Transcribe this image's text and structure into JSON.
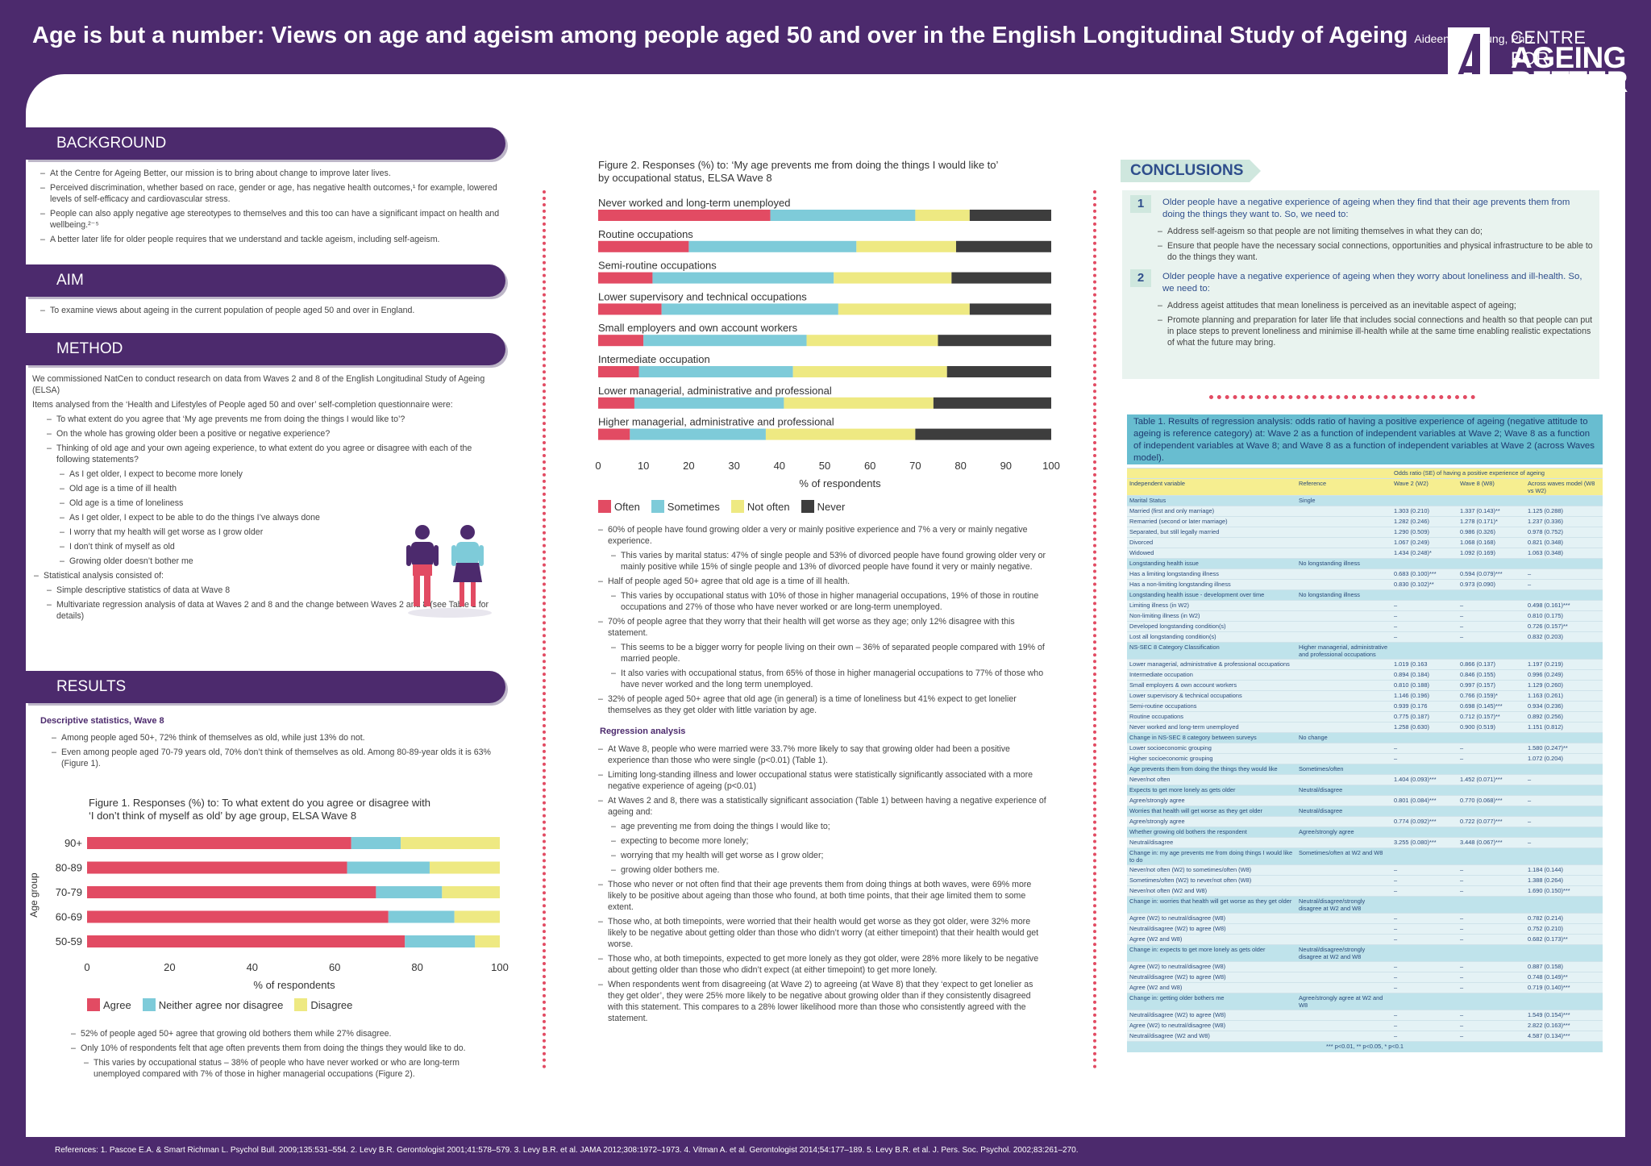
{
  "header": {
    "title": "Age is but a number: Views on age and ageism among people aged 50 and over in the English Longitudinal Study of Ageing",
    "author": "Aideen CM Young, PhD",
    "logo_line1": "CENTRE FOR",
    "logo_line2": "AGEING",
    "logo_line3": "BETTER"
  },
  "colors": {
    "purple": "#4c2a6d",
    "red": "#e24b63",
    "blue": "#7ecbd9",
    "yellow": "#eee982",
    "dark": "#3d3d3d",
    "teal_bg": "#e9f3ef"
  },
  "background": {
    "heading": "BACKGROUND",
    "items": [
      "At the Centre for Ageing Better, our mission is to bring about change to improve later lives.",
      "Perceived discrimination, whether based on race, gender or age, has negative health outcomes,¹ for example, lowered levels of self-efficacy and cardiovascular stress.",
      "People can also apply negative age stereotypes to themselves and this too can have a significant impact on health and wellbeing.²⁻⁵",
      "A better later life for older people requires that we understand and tackle ageism, including self-ageism."
    ]
  },
  "aim": {
    "heading": "AIM",
    "items": [
      "To examine views about ageing in the current population of people aged 50 and over in England."
    ]
  },
  "method": {
    "heading": "METHOD",
    "p1": "We commissioned NatCen to conduct research on data from Waves 2 and 8 of the English Longitudinal Study of Ageing (ELSA)",
    "p2": "Items analysed from the ‘Health and Lifestyles of People aged 50 and over’ self-completion questionnaire were:",
    "q1": "To what extent do you agree that ‘My age prevents me from doing the things I would like to’?",
    "q2": "On the whole has growing older been a positive or negative experience?",
    "q3": "Thinking of old age and your own ageing experience, to what extent do you agree or disagree with each of the following statements?",
    "statements": [
      "As I get older, I expect to become more lonely",
      "Old age is a time of ill health",
      "Old age is a time of loneliness",
      "As I get older, I expect to be able to do the things I’ve always done",
      "I worry that my health will get worse as I grow older",
      "I don’t think of myself as old",
      "Growing older doesn’t bother me"
    ],
    "stat_intro": "Statistical analysis consisted of:",
    "stat_items": [
      "Simple descriptive statistics of data at Wave 8",
      "Multivariate regression analysis of data at Waves 2 and 8 and the change between Waves 2 and 8 (see Table 1 for details)"
    ]
  },
  "results": {
    "heading": "RESULTS",
    "subhead": "Descriptive statistics, Wave 8",
    "items": [
      "Among people aged 50+, 72% think of themselves as old, while just 13% do not.",
      "Even among people aged 70-79 years old, 70% don’t think of themselves as old. Among 80-89-year olds it is 63% (Figure 1)."
    ],
    "after1": "52% of people aged 50+ agree that growing old bothers them while 27% disagree.",
    "after2": "Only 10% of respondents felt that age often prevents them from doing the things they would like to do.",
    "after3": "This varies by occupational status – 38% of people who have never worked or who are long-term unemployed compared with 7% of those in higher managerial occupations (Figure 2)."
  },
  "figure1": {
    "title_line1": "Figure 1. Responses (%) to: To what extent do you agree or disagree with",
    "title_line2": "‘I don’t think of myself as old’ by age group, ELSA Wave 8",
    "ylabel": "Age group",
    "xlabel": "% of respondents",
    "legend": [
      "Agree",
      "Neither agree nor disagree",
      "Disagree"
    ]
  },
  "figure2": {
    "title_line1": "Figure 2. Responses (%) to: ‘My age prevents me from doing the things I would like to’",
    "title_line2": "by occupational status, ELSA Wave 8",
    "xlabel": "% of respondents",
    "legend": [
      "Often",
      "Sometimes",
      "Not often",
      "Never"
    ]
  },
  "chart_data": [
    {
      "type": "bar",
      "orientation": "horizontal-stacked",
      "title": "Figure 1. Responses (%) to: To what extent do you agree or disagree with ‘I don’t think of myself as old’ by age group, ELSA Wave 8",
      "categories": [
        "90+",
        "80-89",
        "70-79",
        "60-69",
        "50-59"
      ],
      "series": [
        {
          "name": "Agree",
          "values": [
            64,
            63,
            70,
            73,
            77
          ]
        },
        {
          "name": "Neither agree nor disagree",
          "values": [
            12,
            20,
            16,
            16,
            17
          ]
        },
        {
          "name": "Disagree",
          "values": [
            24,
            17,
            14,
            11,
            6
          ]
        }
      ],
      "xlim": [
        0,
        100
      ],
      "xticks": [
        0,
        20,
        40,
        60,
        80,
        100
      ],
      "xlabel": "% of respondents",
      "ylabel": "Age group"
    },
    {
      "type": "bar",
      "orientation": "horizontal-stacked",
      "title": "Figure 2. Responses (%) to: ‘My age prevents me from doing the things I would like to’ by occupational status, ELSA Wave 8",
      "categories": [
        "Never worked and long-term unemployed",
        "Routine occupations",
        "Semi-routine occupations",
        "Lower supervisory and technical occupations",
        "Small employers and own account workers",
        "Intermediate occupation",
        "Lower managerial, administrative and professional",
        "Higher managerial, administrative and professional"
      ],
      "series": [
        {
          "name": "Often",
          "values": [
            38,
            20,
            12,
            14,
            10,
            9,
            8,
            7
          ]
        },
        {
          "name": "Sometimes",
          "values": [
            32,
            37,
            40,
            39,
            36,
            34,
            33,
            30
          ]
        },
        {
          "name": "Not often",
          "values": [
            12,
            22,
            26,
            29,
            29,
            34,
            33,
            33
          ]
        },
        {
          "name": "Never",
          "values": [
            18,
            21,
            22,
            18,
            25,
            23,
            26,
            30
          ]
        }
      ],
      "xlim": [
        0,
        100
      ],
      "xticks": [
        0,
        10,
        20,
        30,
        40,
        50,
        60,
        70,
        80,
        90,
        100
      ],
      "xlabel": "% of respondents"
    }
  ],
  "fig2_text": {
    "b1": "60% of people have found growing older a very or mainly positive experience and 7% a very or mainly negative experience.",
    "b1a": "This varies by marital status: 47% of single people and 53% of divorced people have found growing older very or mainly positive while 15% of single people and 13% of divorced people have found it very or mainly negative.",
    "b2": "Half of people aged 50+ agree that old age is a time of ill health.",
    "b2a": "This varies by occupational status with 10% of those in higher managerial occupations, 19% of those in routine occupations and 27% of those who have never worked or are long-term unemployed.",
    "b3": "70% of people agree that they worry that their health will get worse as they age; only 12% disagree with this statement.",
    "b3a": "This seems to be a bigger worry for people living on their own – 36% of separated people compared with 19% of married people.",
    "b3b": "It also varies with occupational status, from 65% of those in higher managerial occupations to 77% of those who have never worked and the long term unemployed.",
    "b4": "32% of people aged 50+ agree that old age (in general) is a time of loneliness but 41% expect to get lonelier themselves as they get older with little variation by age.",
    "reg_head": "Regression analysis",
    "r1": "At Wave 8, people who were married were 33.7% more likely to say that growing older had been a positive experience than those who were single (p<0.01) (Table 1).",
    "r2": "Limiting long-standing illness and lower occupational status were statistically significantly associated with a more negative experience of ageing (p<0.01)",
    "r3": "At Waves 2 and 8, there was a statistically significant association (Table 1) between having a negative experience of ageing and:",
    "r3_items": [
      "age preventing me from doing the things I would like to;",
      "expecting to become more lonely;",
      "worrying that my health will get worse as I grow older;",
      "growing older bothers me."
    ],
    "r4": "Those who never or not often find that their age prevents them from doing things at both waves, were 69% more likely to be positive about ageing than those who found, at both time points, that their age limited them to some extent.",
    "r5": "Those who, at both timepoints, were worried that their health would get worse as they got older, were 32% more likely to be negative about getting older than those who didn’t worry (at either timepoint) that their health would get worse.",
    "r6": "Those who, at both timepoints, expected to get more lonely as they got older, were 28% more likely to be negative about getting older than those who didn’t expect (at either timepoint) to get more lonely.",
    "r7": "When respondents went from disagreeing (at Wave 2) to agreeing (at Wave 8) that they ‘expect to get lonelier as they get older’, they were 25% more likely to be negative about growing older than if they consistently disagreed with this statement. This compares to a 28% lower likelihood more than those who consistently agreed with the statement."
  },
  "conclusions": {
    "heading": "CONCLUSIONS",
    "c1_num": "1",
    "c1": "Older people have a negative experience of ageing when they find that their age prevents them from doing the things they want to. So, we need to:",
    "c1_items": [
      "Address self-ageism so that people are not limiting themselves in what they can do;",
      "Ensure that people have the necessary social connections, opportunities and physical infrastructure to be able to do the things they want."
    ],
    "c2_num": "2",
    "c2": "Older people  have a negative experience of ageing when they worry about loneliness and ill-health. So, we need to:",
    "c2_items": [
      "Address ageist attitudes that mean loneliness is perceived as an inevitable aspect of ageing;",
      "Promote planning and preparation for later life that includes social connections and health so that people can put in place steps to prevent loneliness and minimise ill-health while at the same time enabling realistic expectations of what the future may bring."
    ]
  },
  "table1": {
    "caption": "Table 1.  Results of regression analysis: odds ratio of having a positive experience of ageing (negative attitude to ageing is reference category) at: Wave 2 as a function of independent variables at Wave 2; Wave 8 as a function of independent variables at Wave 8; and Wave 8 as a function of independent variables at Wave 2 (across Waves model).",
    "col_super": "Odds ratio (SE) of having a positive experience of ageing",
    "cols": [
      "Independent variable",
      "Reference",
      "Wave 2 (W2)",
      "Wave 8 (W8)",
      "Across waves model (W8 vs W2)"
    ],
    "rows": [
      [
        "g",
        "Marital Status",
        "Single",
        "",
        "",
        ""
      ],
      [
        "r",
        "Married (first and only marriage)",
        "",
        "1.303 (0.210)",
        "1.337 (0.143)**",
        "1.125 (0.288)"
      ],
      [
        "r",
        "Remarried (second or later marriage)",
        "",
        "1.282 (0.246)",
        "1.278 (0.171)*",
        "1.237 (0.336)"
      ],
      [
        "r",
        "Separated, but still legally married",
        "",
        "1.290 (0.509)",
        "0.986 (0.326)",
        "0.978 (0.752)"
      ],
      [
        "r",
        "Divorced",
        "",
        "1.067 (0.249)",
        "1.068 (0.168)",
        "0.821 (0.348)"
      ],
      [
        "r",
        "Widowed",
        "",
        "1.434 (0.248)*",
        "1.092 (0.169)",
        "1.063 (0.348)"
      ],
      [
        "g",
        "Longstanding health issue",
        "No longstanding illness",
        "",
        "",
        ""
      ],
      [
        "r",
        "Has a limiting longstanding illness",
        "",
        "0.683 (0.100)***",
        "0.594 (0.079)***",
        "–"
      ],
      [
        "r",
        "Has a non-limiting longstanding illness",
        "",
        "0.830 (0.102)**",
        "0.973 (0.090)",
        "–"
      ],
      [
        "g",
        "Longstanding health issue - development over time",
        "No longstanding illness",
        "",
        "",
        ""
      ],
      [
        "r",
        "Limiting illness (in W2)",
        "",
        "–",
        "–",
        "0.498 (0.161)***"
      ],
      [
        "r",
        "Non-limiting illness (in W2)",
        "",
        "–",
        "–",
        "0.810 (0.175)"
      ],
      [
        "r",
        "Developed longstanding condition(s)",
        "",
        "–",
        "–",
        "0.726 (0.157)**"
      ],
      [
        "r",
        "Lost all longstanding condition(s)",
        "",
        "–",
        "–",
        "0.832 (0.203)"
      ],
      [
        "g",
        "NS-SEC 8 Category Classification",
        "Higher managerial, administrative and professional occupations",
        "",
        "",
        ""
      ],
      [
        "r",
        "Lower managerial, administrative & professional occupations",
        "",
        "1.019 (0.163",
        "0.866 (0.137)",
        "1.197 (0.219)"
      ],
      [
        "r",
        "Intermediate occupation",
        "",
        "0.894 (0.184)",
        "0.846 (0.155)",
        "0.996 (0.249)"
      ],
      [
        "r",
        "Small employers & own account workers",
        "",
        "0.810 (0.188)",
        "0.997 (0.157)",
        "1.129 (0.260)"
      ],
      [
        "r",
        "Lower supervisory & technical occupations",
        "",
        "1.146 (0.196)",
        "0.766 (0.159)*",
        "1.163 (0.261)"
      ],
      [
        "r",
        "Semi-routine occupations",
        "",
        "0.939 (0.176",
        "0.698 (0.145)***",
        "0.934 (0.236)"
      ],
      [
        "r",
        "Routine occupations",
        "",
        "0.775 (0.187)",
        "0.712 (0.157)**",
        "0.892 (0.256)"
      ],
      [
        "r",
        "Never worked and long-term unemployed",
        "",
        "1.258 (0.630)",
        "0.900 (0.519)",
        "1.151 (0.812)"
      ],
      [
        "g",
        "Change in NS-SEC 8 category between surveys",
        "No change",
        "",
        "",
        ""
      ],
      [
        "r",
        "Lower socioeconomic grouping",
        "",
        "–",
        "–",
        "1.580 (0.247)**"
      ],
      [
        "r",
        "Higher socioeconomic grouping",
        "",
        "–",
        "–",
        "1.072 (0.204)"
      ],
      [
        "g",
        "Age prevents them from doing the things they would like",
        "Sometimes/often",
        "",
        "",
        ""
      ],
      [
        "r",
        "Never/not often",
        "",
        "1.404 (0.093)***",
        "1.452 (0.071)***",
        "–"
      ],
      [
        "g",
        "Expects to get more lonely as gets older",
        "Neutral/disagree",
        "",
        "",
        ""
      ],
      [
        "r",
        "Agree/strongly agree",
        "",
        "0.801 (0.084)***",
        "0.770 (0.068)***",
        "–"
      ],
      [
        "g",
        "Worries that health will get worse as they get older",
        "Neutral/disagree",
        "",
        "",
        ""
      ],
      [
        "r",
        "Agree/strongly agree",
        "",
        "0.774 (0.092)***",
        "0.722 (0.077)***",
        "–"
      ],
      [
        "g",
        "Whether growing old bothers the respondent",
        "Agree/strongly agree",
        "",
        "",
        ""
      ],
      [
        "r",
        "Neutral/disagree",
        "",
        "3.255 (0.080)***",
        "3.448 (0.067)***",
        "–"
      ],
      [
        "g",
        "Change in: my age prevents me from doing things I would like to do",
        "Sometimes/often at W2 and W8",
        "",
        "",
        ""
      ],
      [
        "r",
        "Never/not often (W2) to sometimes/often (W8)",
        "",
        "–",
        "–",
        "1.184 (0.144)"
      ],
      [
        "r",
        "Sometimes/often (W2) to never/not often (W8)",
        "",
        "–",
        "–",
        "1.388 (0.264)"
      ],
      [
        "r",
        "Never/not often (W2 and W8)",
        "",
        "–",
        "–",
        "1.690 (0.150)***"
      ],
      [
        "g",
        "Change in: worries that health will get worse as they get older",
        "Neutral/disagree/strongly disagree at W2 and W8",
        "",
        "",
        ""
      ],
      [
        "r",
        "Agree (W2) to neutral/disagree (W8)",
        "",
        "–",
        "–",
        "0.782 (0.214)"
      ],
      [
        "r",
        "Neutral/disagree (W2) to agree (W8)",
        "",
        "–",
        "–",
        "0.752 (0.210)"
      ],
      [
        "r",
        "Agree (W2 and W8)",
        "",
        "–",
        "–",
        "0.682 (0.173)**"
      ],
      [
        "g",
        "Change in: expects to get more lonely as gets older",
        "Neutral/disagree/strongly disagree at W2 and W8",
        "",
        "",
        ""
      ],
      [
        "r",
        "Agree (W2) to neutral/disagree (W8)",
        "",
        "–",
        "–",
        "0.887 (0.158)"
      ],
      [
        "r",
        "Neutral/disagree (W2) to agree (W8)",
        "",
        "–",
        "–",
        "0.748 (0.149)**"
      ],
      [
        "r",
        "Agree (W2 and W8)",
        "",
        "–",
        "–",
        "0.719 (0.140)***"
      ],
      [
        "g",
        "Change in: getting older bothers me",
        "Agree/strongly agree at W2 and W8",
        "",
        "",
        ""
      ],
      [
        "r",
        "Neutral/disagree (W2) to agree (W8)",
        "",
        "–",
        "–",
        "1.549 (0.154)***"
      ],
      [
        "r",
        "Agree (W2) to neutral/disagree (W8)",
        "",
        "–",
        "–",
        "2.822 (0.163)***"
      ],
      [
        "r",
        "Neutral/disagree (W2 and W8)",
        "",
        "–",
        "–",
        "4.587 (0.134)***"
      ]
    ],
    "footnote": "*** p<0.01, ** p<0.05, * p<0.1"
  },
  "references": "References:  1. Pascoe E.A. & Smart Richman L. Psychol Bull. 2009;135:531–554.   2. Levy B.R. Gerontologist 2001;41:578–579.   3. Levy B.R. et al. JAMA 2012;308:1972–1973.   4. Vitman A. et al. Gerontologist 2014;54:177–189.  5. Levy B.R. et al. J. Pers. Soc. Psychol. 2002;83:261–270."
}
